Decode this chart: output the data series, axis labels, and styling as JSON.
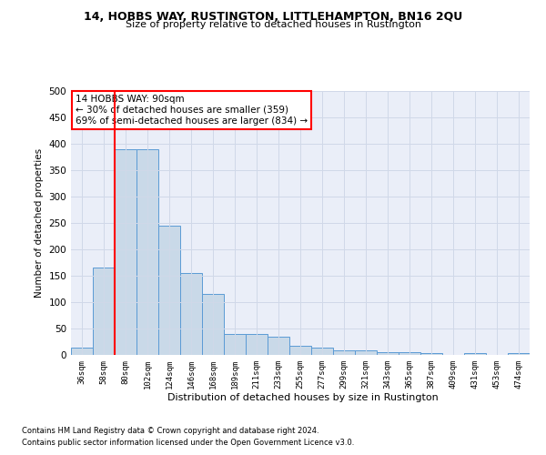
{
  "title": "14, HOBBS WAY, RUSTINGTON, LITTLEHAMPTON, BN16 2QU",
  "subtitle": "Size of property relative to detached houses in Rustington",
  "xlabel": "Distribution of detached houses by size in Rustington",
  "ylabel": "Number of detached properties",
  "footnote1": "Contains HM Land Registry data © Crown copyright and database right 2024.",
  "footnote2": "Contains public sector information licensed under the Open Government Licence v3.0.",
  "annotation_line1": "14 HOBBS WAY: 90sqm",
  "annotation_line2": "← 30% of detached houses are smaller (359)",
  "annotation_line3": "69% of semi-detached houses are larger (834) →",
  "bar_color": "#c9d9e8",
  "bar_edge_color": "#5b9bd5",
  "bar_values": [
    13,
    165,
    390,
    390,
    245,
    155,
    115,
    40,
    40,
    35,
    18,
    13,
    8,
    8,
    5,
    5,
    3,
    0,
    3,
    0,
    3
  ],
  "bar_labels": [
    "36sqm",
    "58sqm",
    "80sqm",
    "102sqm",
    "124sqm",
    "146sqm",
    "168sqm",
    "189sqm",
    "211sqm",
    "233sqm",
    "255sqm",
    "277sqm",
    "299sqm",
    "321sqm",
    "343sqm",
    "365sqm",
    "387sqm",
    "409sqm",
    "431sqm",
    "453sqm",
    "474sqm"
  ],
  "redline_x": 2.0,
  "ylim": [
    0,
    500
  ],
  "yticks": [
    0,
    50,
    100,
    150,
    200,
    250,
    300,
    350,
    400,
    450,
    500
  ],
  "grid_color": "#d0d8e8",
  "background_color": "#ffffff",
  "plot_bg_color": "#eaeef8"
}
